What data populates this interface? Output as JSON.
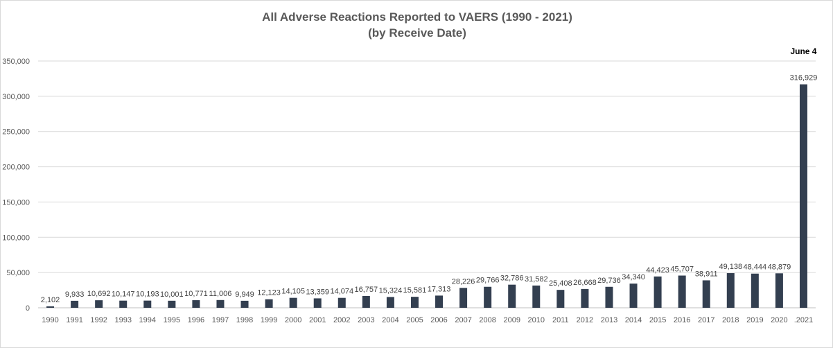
{
  "chart_data": {
    "type": "bar",
    "title": "All Adverse Reactions Reported to VAERS (1990 - 2021)",
    "subtitle": "(by Receive Date)",
    "annotation": "June 4",
    "categories": [
      "1990",
      "1991",
      "1992",
      "1993",
      "1994",
      "1995",
      "1996",
      "1997",
      "1998",
      "1999",
      "2000",
      "2001",
      "2002",
      "2003",
      "2004",
      "2005",
      "2006",
      "2007",
      "2008",
      "2009",
      "2010",
      "2011",
      "2012",
      "2013",
      "2014",
      "2015",
      "2016",
      "2017",
      "2018",
      "2019",
      "2020",
      ".2021"
    ],
    "values": [
      2102,
      9933,
      10692,
      10147,
      10193,
      10001,
      10771,
      11006,
      9949,
      12123,
      14105,
      13359,
      14074,
      16757,
      15324,
      15581,
      17313,
      28226,
      29766,
      32786,
      31582,
      25408,
      26668,
      29736,
      34340,
      44423,
      45707,
      38911,
      49138,
      48444,
      48879,
      316929
    ],
    "data_labels": [
      "2,102",
      "9,933",
      "10,692",
      "10,147",
      "10,193",
      "10,001",
      "10,771",
      "11,006",
      "9,949",
      "12,123",
      "14,105",
      "13,359",
      "14,074",
      "16,757",
      "15,324",
      "15,581",
      "17,313",
      "28,226",
      "29,766",
      "32,786",
      "31,582",
      "25,408",
      "26,668",
      "29,736",
      "34,340",
      "44,423",
      "45,707",
      "38,911",
      "49,138",
      "48,444",
      "48,879",
      "316,929"
    ],
    "y_ticks": [
      0,
      50000,
      100000,
      150000,
      200000,
      250000,
      300000,
      350000
    ],
    "y_tick_labels": [
      "0",
      "50,000",
      "100,000",
      "150,000",
      "200,000",
      "250,000",
      "300,000",
      "350,000"
    ],
    "ylim": [
      0,
      350000
    ],
    "grid": true,
    "legend": "none",
    "bar_color": "#333f50"
  }
}
